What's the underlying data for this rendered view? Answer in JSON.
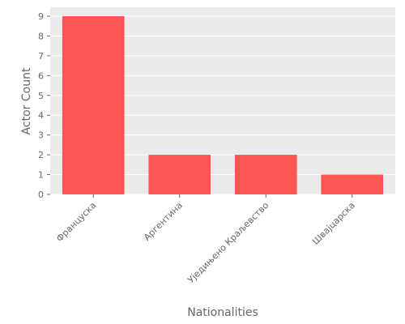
{
  "chart_data": {
    "type": "bar",
    "title": "",
    "xlabel": "Nationalities",
    "ylabel": "Actor Count",
    "categories": [
      "Француска",
      "Аргентина",
      "Уједињено Краљевство",
      "Швајцарска"
    ],
    "values": [
      9,
      2,
      2,
      1
    ],
    "ylim": [
      0,
      9.45
    ],
    "yticks": [
      0,
      1,
      2,
      3,
      4,
      5,
      6,
      7,
      8,
      9
    ],
    "grid": true,
    "legend": "none",
    "colors": {
      "bar": "#ff5555",
      "panel": "#ebebeb",
      "grid": "#ffffff",
      "text": "#666666"
    }
  }
}
